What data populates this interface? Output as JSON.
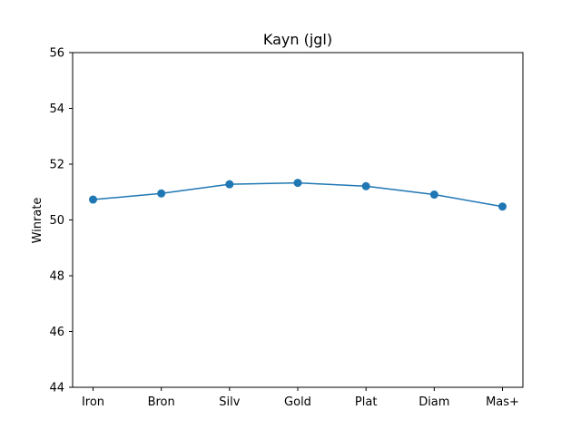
{
  "chart_data": {
    "type": "line",
    "title": "Kayn (jgl)",
    "xlabel": "",
    "ylabel": "Winrate",
    "categories": [
      "Iron",
      "Bron",
      "Silv",
      "Gold",
      "Plat",
      "Diam",
      "Mas+"
    ],
    "series": [
      {
        "values": [
          50.73,
          50.95,
          51.28,
          51.33,
          51.21,
          50.91,
          50.48
        ],
        "color": "#1f77b4"
      }
    ],
    "ylim": [
      44,
      56
    ],
    "yticks": [
      "44",
      "46",
      "48",
      "50",
      "52",
      "54",
      "56"
    ],
    "grid": false,
    "legend": "none"
  }
}
